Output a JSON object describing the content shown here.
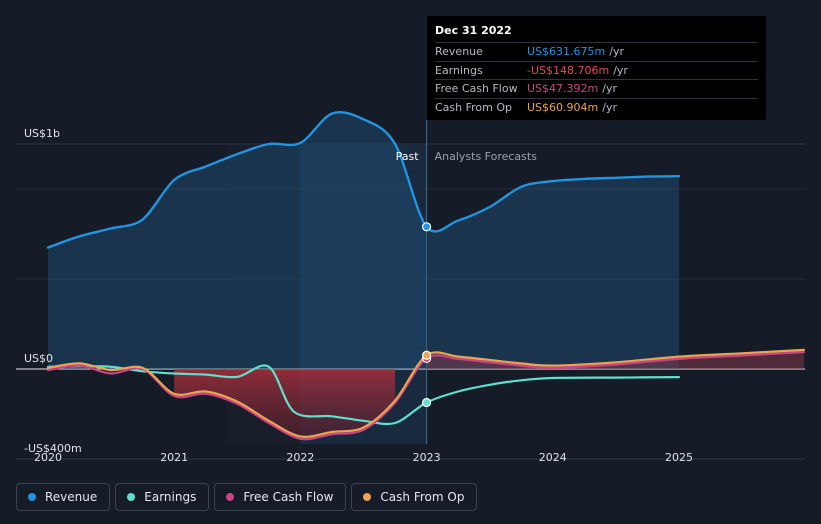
{
  "chart_data": {
    "type": "line",
    "x_range": [
      2019.76,
      2025.99
    ],
    "y_range": [
      -420,
      1000
    ],
    "x_ticks": [
      {
        "value": 2020,
        "label": "2020"
      },
      {
        "value": 2021,
        "label": "2021"
      },
      {
        "value": 2022,
        "label": "2022"
      },
      {
        "value": 2023,
        "label": "2023"
      },
      {
        "value": 2024,
        "label": "2024"
      },
      {
        "value": 2025,
        "label": "2025"
      }
    ],
    "y_labels": [
      {
        "value": 1000,
        "label": "US$1b"
      },
      {
        "value": 0,
        "label": "US$0"
      },
      {
        "value": -400,
        "label": "-US$400m"
      }
    ],
    "divider_x": 2023,
    "past_label": "Past",
    "forecast_label": "Analysts Forecasts",
    "series": [
      {
        "name": "Revenue",
        "color": "#2394df",
        "fill": true,
        "points": [
          [
            2020,
            540
          ],
          [
            2020.25,
            590
          ],
          [
            2020.5,
            625
          ],
          [
            2020.75,
            665
          ],
          [
            2021,
            840
          ],
          [
            2021.25,
            900
          ],
          [
            2021.5,
            955
          ],
          [
            2021.75,
            1000
          ],
          [
            2022,
            1005
          ],
          [
            2022.25,
            1135
          ],
          [
            2022.5,
            1110
          ],
          [
            2022.75,
            1000
          ],
          [
            2023,
            632
          ],
          [
            2023.25,
            660
          ],
          [
            2023.5,
            720
          ],
          [
            2023.75,
            810
          ],
          [
            2024,
            835
          ],
          [
            2024.25,
            845
          ],
          [
            2024.5,
            850
          ],
          [
            2024.75,
            855
          ],
          [
            2025,
            857
          ]
        ]
      },
      {
        "name": "Earnings",
        "color": "#5ee0cc",
        "fill": false,
        "points": [
          [
            2020,
            10
          ],
          [
            2020.25,
            12
          ],
          [
            2020.5,
            10
          ],
          [
            2020.75,
            -10
          ],
          [
            2021,
            -20
          ],
          [
            2021.25,
            -25
          ],
          [
            2021.5,
            -35
          ],
          [
            2021.75,
            10
          ],
          [
            2021.95,
            -190
          ],
          [
            2022.25,
            -210
          ],
          [
            2022.5,
            -230
          ],
          [
            2022.75,
            -240
          ],
          [
            2023,
            -149
          ],
          [
            2023.25,
            -100
          ],
          [
            2023.5,
            -70
          ],
          [
            2023.75,
            -50
          ],
          [
            2024,
            -40
          ],
          [
            2024.5,
            -38
          ],
          [
            2025,
            -36
          ]
        ]
      },
      {
        "name": "Free Cash Flow",
        "color": "#c94385",
        "fill": false,
        "points": [
          [
            2020,
            -5
          ],
          [
            2020.25,
            15
          ],
          [
            2020.5,
            -20
          ],
          [
            2020.75,
            0
          ],
          [
            2021,
            -120
          ],
          [
            2021.25,
            -110
          ],
          [
            2021.5,
            -155
          ],
          [
            2021.75,
            -240
          ],
          [
            2022,
            -310
          ],
          [
            2022.25,
            -290
          ],
          [
            2022.5,
            -270
          ],
          [
            2022.75,
            -150
          ],
          [
            2023,
            47
          ],
          [
            2023.25,
            45
          ],
          [
            2023.5,
            30
          ],
          [
            2023.75,
            15
          ],
          [
            2024,
            5
          ],
          [
            2024.5,
            20
          ],
          [
            2025,
            45
          ],
          [
            2025.5,
            60
          ],
          [
            2025.99,
            75
          ]
        ]
      },
      {
        "name": "Cash From Op",
        "color": "#e9a54f",
        "fill": false,
        "points": [
          [
            2020,
            5
          ],
          [
            2020.25,
            25
          ],
          [
            2020.5,
            -5
          ],
          [
            2020.75,
            5
          ],
          [
            2021,
            -110
          ],
          [
            2021.25,
            -100
          ],
          [
            2021.5,
            -145
          ],
          [
            2021.75,
            -230
          ],
          [
            2022,
            -300
          ],
          [
            2022.25,
            -280
          ],
          [
            2022.5,
            -260
          ],
          [
            2022.75,
            -140
          ],
          [
            2023,
            61
          ],
          [
            2023.25,
            55
          ],
          [
            2023.5,
            40
          ],
          [
            2023.75,
            25
          ],
          [
            2024,
            15
          ],
          [
            2024.5,
            30
          ],
          [
            2025,
            55
          ],
          [
            2025.5,
            70
          ],
          [
            2025.99,
            85
          ]
        ]
      }
    ],
    "tooltip": {
      "date": "Dec 31 2022",
      "rows": [
        {
          "label": "Revenue",
          "value": "US$631.675m",
          "unit": "/yr",
          "color": "#2394df"
        },
        {
          "label": "Earnings",
          "value": "-US$148.706m",
          "unit": "/yr",
          "color": "#e54b5a"
        },
        {
          "label": "Free Cash Flow",
          "value": "US$47.392m",
          "unit": "/yr",
          "color": "#c94385"
        },
        {
          "label": "Cash From Op",
          "value": "US$60.904m",
          "unit": "/yr",
          "color": "#e9a54f"
        }
      ]
    }
  },
  "legend": [
    {
      "label": "Revenue",
      "color": "#2394df"
    },
    {
      "label": "Earnings",
      "color": "#5ee0cc"
    },
    {
      "label": "Free Cash Flow",
      "color": "#c94385"
    },
    {
      "label": "Cash From Op",
      "color": "#e9a54f"
    }
  ]
}
